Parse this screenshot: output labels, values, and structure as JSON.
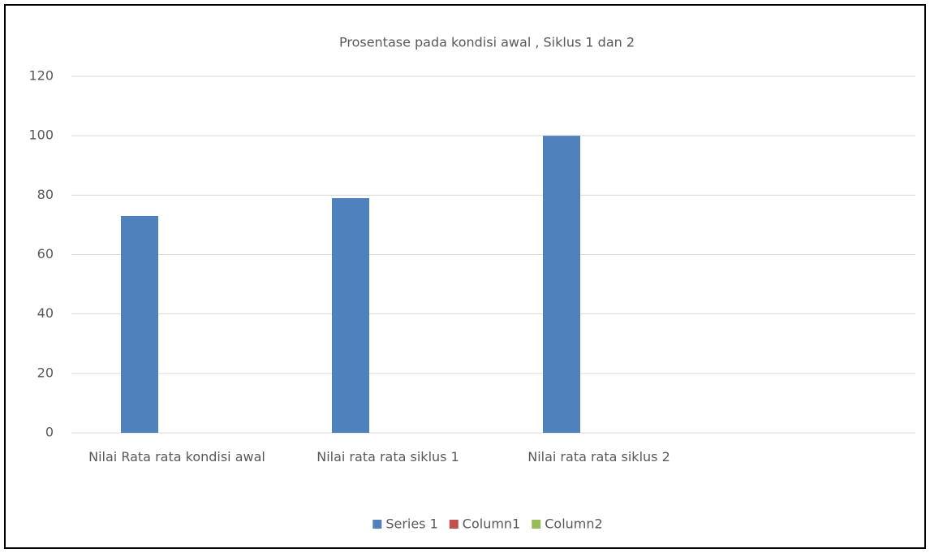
{
  "chart_data": {
    "type": "bar",
    "title": "Prosentase pada kondisi awal , Siklus 1 dan 2",
    "categories": [
      "Nilai Rata rata kondisi awal",
      "Nilai rata rata siklus 1",
      "Nilai rata rata siklus 2",
      null
    ],
    "series": [
      {
        "name": "Series 1",
        "color": "#4f81bd",
        "values": [
          73,
          79,
          100,
          null
        ]
      },
      {
        "name": "Column1",
        "color": "#c0504d",
        "values": [
          null,
          null,
          null,
          null
        ]
      },
      {
        "name": "Column2",
        "color": "#9bbb59",
        "values": [
          null,
          null,
          null,
          null
        ]
      }
    ],
    "ylim": [
      0,
      120
    ],
    "yticks": [
      0,
      20,
      40,
      60,
      80,
      100,
      120
    ],
    "grid": true,
    "legend": "bottom"
  }
}
